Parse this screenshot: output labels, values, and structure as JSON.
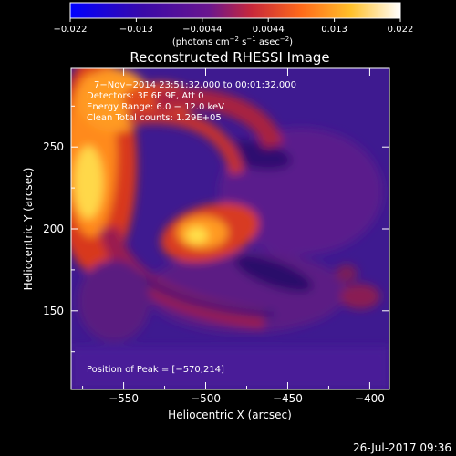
{
  "colorbar": {
    "ticks": [
      "−0.022",
      "−0.013",
      "−0.0044",
      "0.0044",
      "0.013",
      "0.022"
    ],
    "unit_main": "(photons cm",
    "unit_sup1": "−2",
    "unit_mid": " s",
    "unit_sup2": "−1",
    "unit_tail": " asec",
    "unit_sup3": "−2",
    "unit_close": ")",
    "range": [
      -0.022,
      0.022
    ]
  },
  "footer": {
    "timestamp": "26-Jul-2017 09:36"
  },
  "chart_data": {
    "type": "heatmap",
    "title": "Reconstructed RHESSI Image",
    "xlabel": "Heliocentric X (arcsec)",
    "ylabel": "Heliocentric Y (arcsec)",
    "xlim": [
      -582,
      -388
    ],
    "ylim": [
      102,
      298
    ],
    "x_ticks": [
      -550,
      -500,
      -450,
      -400
    ],
    "y_ticks": [
      150,
      200,
      250
    ],
    "x_tick_labels": [
      "−550",
      "−500",
      "−450",
      "−400"
    ],
    "y_tick_labels": [
      "150",
      "200",
      "250"
    ],
    "info_lines": [
      "7−Nov−2014 23:51:32.000 to 00:01:32.000",
      "Detectors: 3F 6F 9F, Att 0",
      "Energy Range: 6.0 − 12.0 keV",
      "Clean     Total counts: 1.29E+05"
    ],
    "peak_label": "Position of Peak = [−570,214]",
    "peak": [
      -570,
      214
    ],
    "colormap": "RHESSI heat (blue–purple–red–orange–yellow–white)"
  }
}
